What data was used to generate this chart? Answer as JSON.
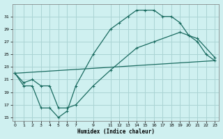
{
  "xlabel": "Humidex (Indice chaleur)",
  "bg_color": "#cff0f0",
  "grid_color": "#aad4d4",
  "line_color": "#1a6b60",
  "line1": {
    "x": [
      0,
      1,
      2,
      3,
      4,
      5,
      6,
      7,
      9,
      11,
      12,
      13,
      14,
      15,
      16,
      17,
      18,
      19,
      20,
      21,
      22,
      23
    ],
    "y": [
      22,
      20,
      20,
      16.5,
      16.5,
      15,
      16,
      20,
      25,
      29,
      30,
      31,
      32,
      32,
      32,
      31,
      31,
      30,
      28,
      27,
      25,
      24
    ]
  },
  "line2": {
    "x": [
      0,
      1,
      2,
      3,
      4,
      5,
      6,
      7,
      9,
      11,
      14,
      16,
      19,
      20,
      21,
      23
    ],
    "y": [
      22,
      20.5,
      21,
      20,
      20,
      16.5,
      16.5,
      17,
      20,
      22.5,
      26,
      27,
      28.5,
      28,
      27.5,
      24.5
    ]
  },
  "line3": {
    "x": [
      0,
      23
    ],
    "y": [
      22,
      24
    ]
  },
  "xlim": [
    -0.3,
    23.5
  ],
  "ylim": [
    14.5,
    33
  ],
  "xticks": [
    0,
    1,
    2,
    3,
    4,
    5,
    6,
    7,
    9,
    11,
    12,
    13,
    14,
    15,
    16,
    17,
    18,
    19,
    20,
    21,
    22,
    23
  ],
  "yticks": [
    15,
    17,
    19,
    21,
    23,
    25,
    27,
    29,
    31
  ]
}
